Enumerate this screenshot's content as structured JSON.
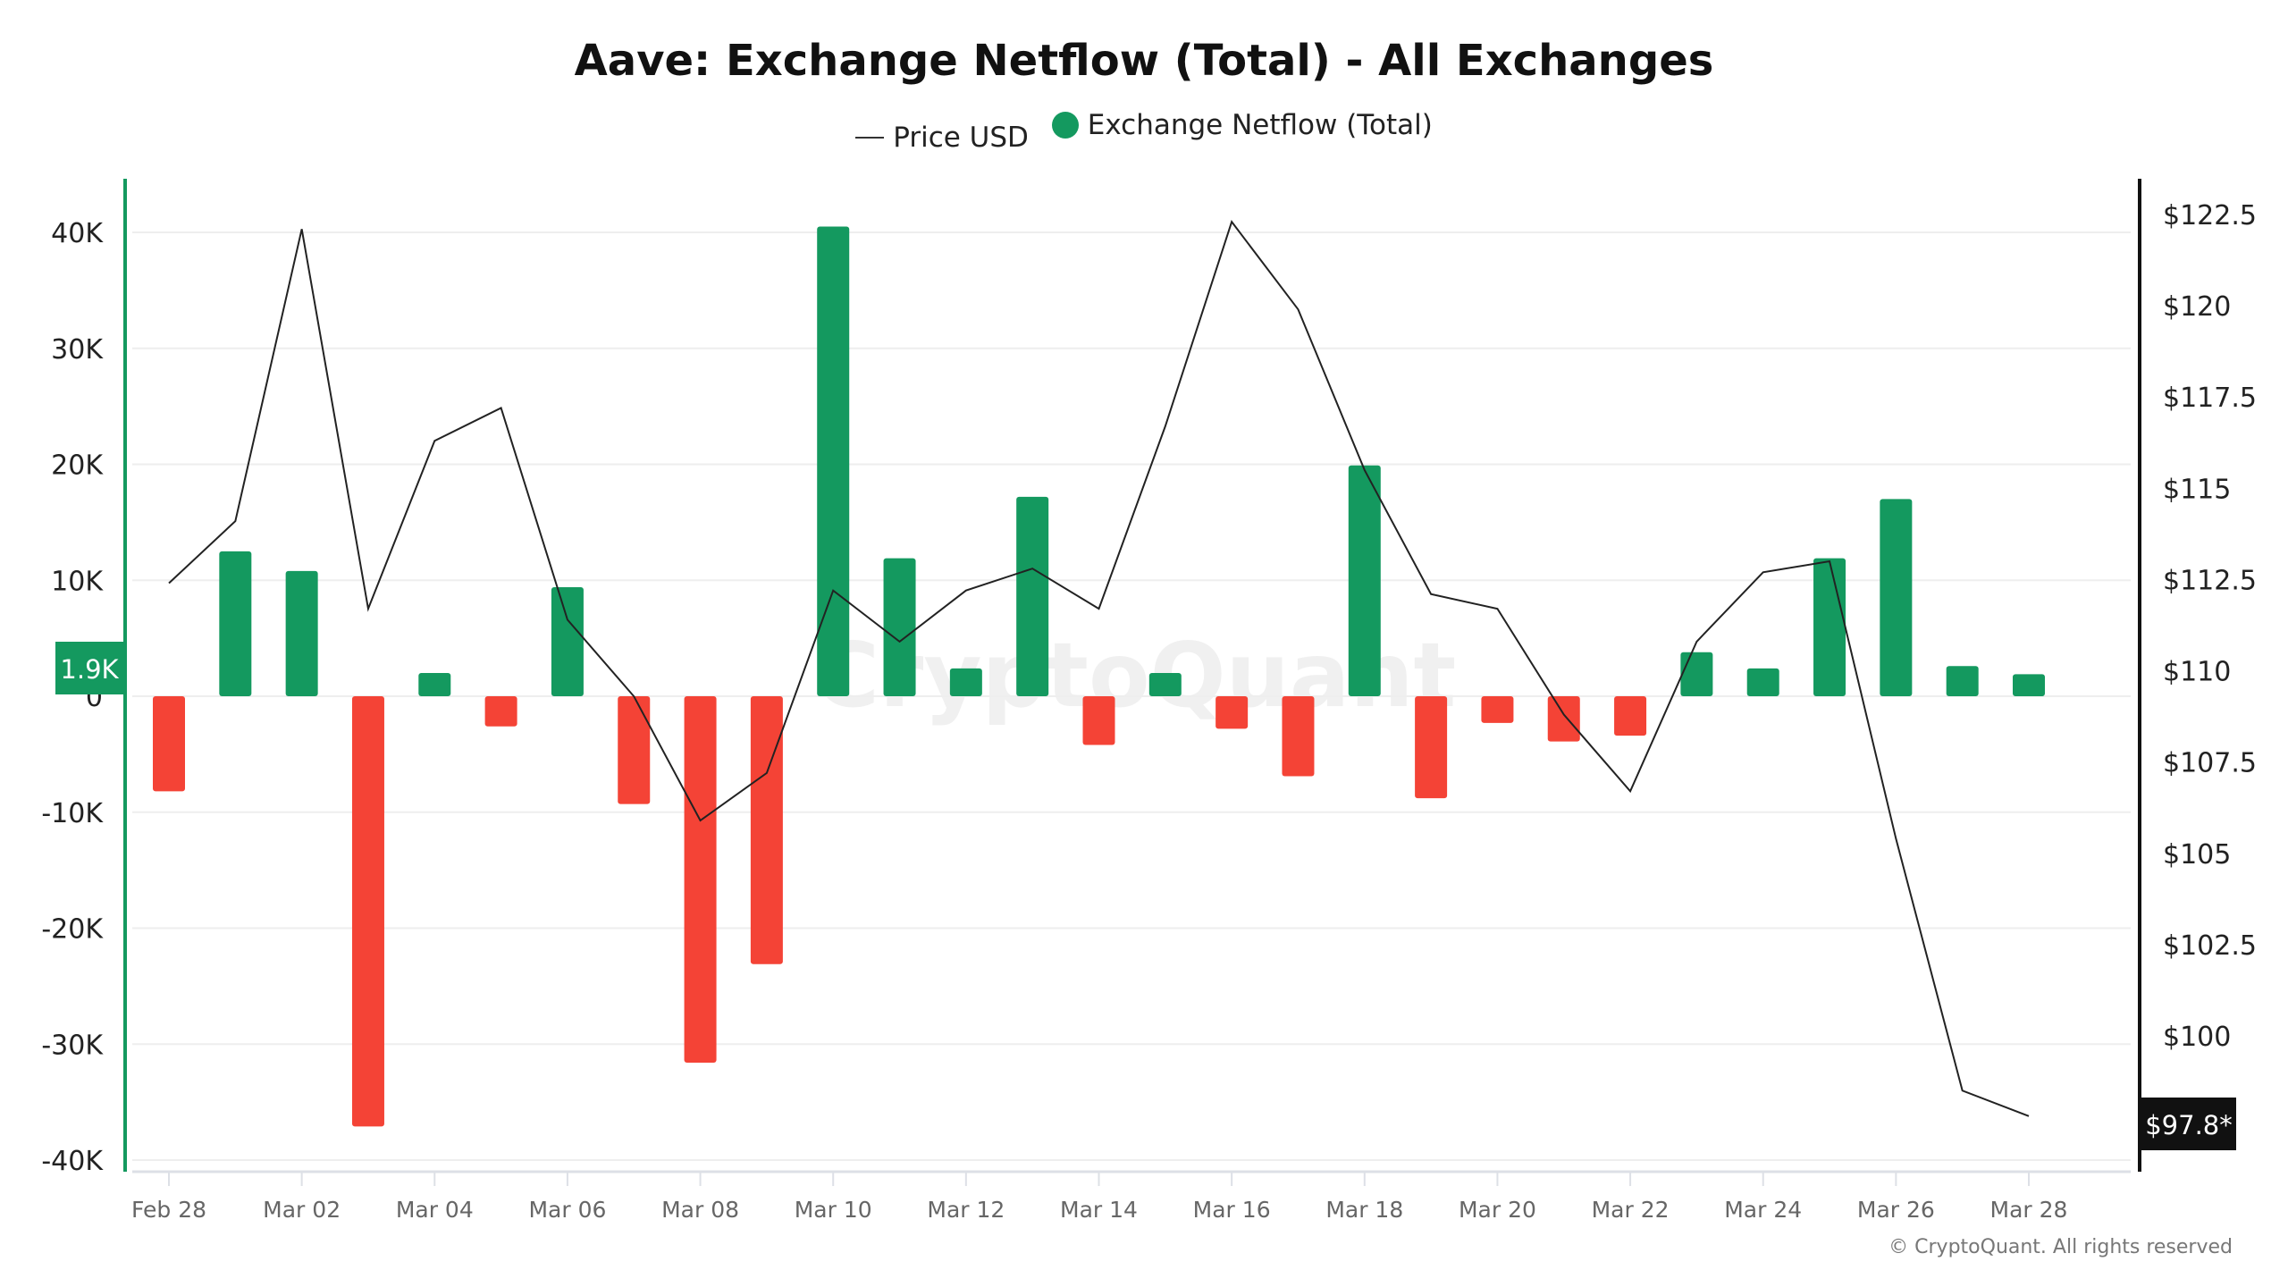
{
  "chart_data": {
    "type": "bar",
    "title": "Aave: Exchange Netflow (Total) - All Exchanges",
    "legend": [
      {
        "name": "Price USD",
        "marker": "line",
        "color": "#222222"
      },
      {
        "name": "Exchange Netflow (Total)",
        "marker": "dot",
        "color": "#14995f"
      }
    ],
    "legend_position": "top-center",
    "categories": [
      "Feb 28",
      "Mar 01",
      "Mar 02",
      "Mar 03",
      "Mar 04",
      "Mar 05",
      "Mar 06",
      "Mar 07",
      "Mar 08",
      "Mar 09",
      "Mar 10",
      "Mar 11",
      "Mar 12",
      "Mar 13",
      "Mar 14",
      "Mar 15",
      "Mar 16",
      "Mar 17",
      "Mar 18",
      "Mar 19",
      "Mar 20",
      "Mar 21",
      "Mar 22",
      "Mar 23",
      "Mar 24",
      "Mar 25",
      "Mar 26",
      "Mar 27",
      "Mar 28"
    ],
    "x_tick_labels": [
      "Feb 28",
      "Mar 02",
      "Mar 04",
      "Mar 06",
      "Mar 08",
      "Mar 10",
      "Mar 12",
      "Mar 14",
      "Mar 16",
      "Mar 18",
      "Mar 20",
      "Mar 22",
      "Mar 24",
      "Mar 26",
      "Mar 28"
    ],
    "series": [
      {
        "name": "Exchange Netflow (Total)",
        "type": "bar",
        "axis": "left",
        "values": [
          -8200,
          12500,
          10800,
          -37100,
          2000,
          -2600,
          9400,
          -9300,
          -31600,
          -23100,
          40500,
          11900,
          2400,
          17200,
          -4200,
          2000,
          -2800,
          -6900,
          19900,
          -8800,
          -2300,
          -3900,
          -3400,
          3800,
          2400,
          11900,
          17000,
          2600,
          1900
        ]
      },
      {
        "name": "Price USD",
        "type": "line",
        "axis": "right",
        "values": [
          112.4,
          114.1,
          122.1,
          111.7,
          116.3,
          117.2,
          111.4,
          109.3,
          105.9,
          107.2,
          112.2,
          110.8,
          112.2,
          112.8,
          111.7,
          116.7,
          122.3,
          119.9,
          115.5,
          112.1,
          111.7,
          108.8,
          106.7,
          110.8,
          112.7,
          113.0,
          105.4,
          98.5,
          97.8
        ]
      }
    ],
    "left_axis": {
      "ylim": [
        -40000,
        40000
      ],
      "ticks": [
        "40K",
        "30K",
        "20K",
        "10K",
        "0",
        "-10K",
        "-20K",
        "-30K",
        "-40K"
      ],
      "tick_values": [
        40000,
        30000,
        20000,
        10000,
        0,
        -10000,
        -20000,
        -30000,
        -40000
      ]
    },
    "right_axis": {
      "ylim": [
        97.5,
        122.5
      ],
      "ticks": [
        "$122.5",
        "$120",
        "$117.5",
        "$115",
        "$112.5",
        "$110",
        "$107.5",
        "$105",
        "$102.5",
        "$100"
      ],
      "tick_values": [
        122.5,
        120,
        117.5,
        115,
        112.5,
        110,
        107.5,
        105,
        102.5,
        100
      ]
    },
    "current_netflow_label": "1.9K",
    "current_price_label": "$97.8*",
    "positive_color": "#14995f",
    "negative_color": "#f44336",
    "grid": true,
    "watermark": "CryptoQuant"
  },
  "footer": {
    "copyright": "© CryptoQuant. All rights reserved"
  }
}
